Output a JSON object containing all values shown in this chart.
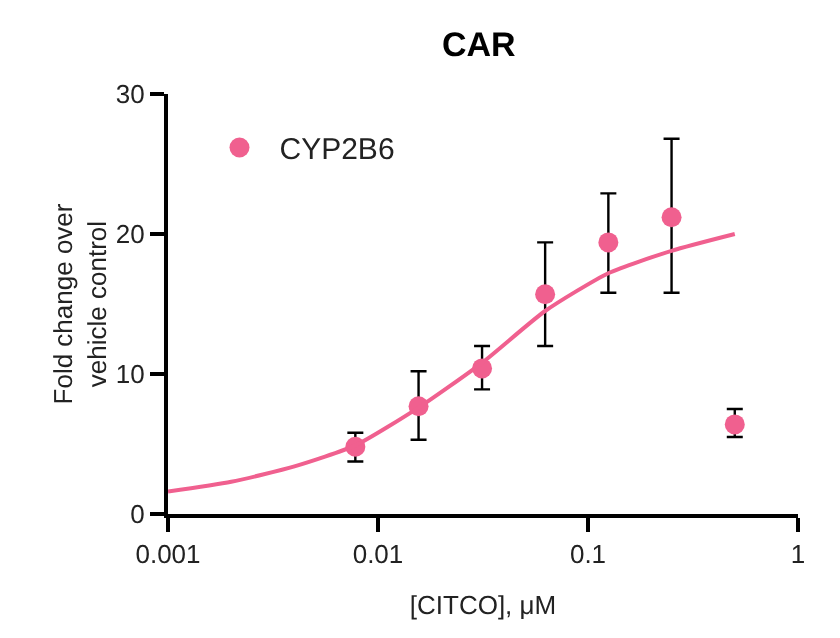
{
  "chart_data": {
    "type": "scatter",
    "title": "CAR",
    "xlabel": "[CITCO], μM",
    "ylabel": "Fold change over\nvehicle control",
    "log": "x",
    "xlim": [
      0.001,
      1
    ],
    "xticks": [
      0.001,
      0.01,
      0.1,
      1
    ],
    "ylim": [
      0,
      30
    ],
    "yticks": [
      0,
      10,
      20,
      30
    ],
    "grid": false,
    "legend": "top left",
    "marker": "circle",
    "series": [
      {
        "name": "CYP2B6",
        "color": "#f0608f",
        "x": [
          0.0078,
          0.0156,
          0.0313,
          0.0625,
          0.125,
          0.25,
          0.5
        ],
        "values": [
          4.8,
          7.7,
          10.4,
          15.7,
          19.4,
          21.2,
          6.4
        ],
        "errors": [
          [
            3.75,
            5.8
          ],
          [
            5.3,
            10.2
          ],
          [
            8.9,
            12.0
          ],
          [
            12.0,
            19.4
          ],
          [
            15.8,
            22.9
          ],
          [
            15.8,
            26.8
          ],
          [
            5.5,
            7.5
          ]
        ]
      },
      {
        "type": "line",
        "marker": "none",
        "color": "#f0608f",
        "line_style": "solid",
        "x": [
          0.001,
          0.002,
          0.004,
          0.0078,
          0.0156,
          0.0313,
          0.0625,
          0.125,
          0.25,
          0.5
        ],
        "values": [
          1.6,
          2.3,
          3.4,
          4.9,
          7.6,
          10.8,
          14.5,
          17.2,
          18.8,
          20.0
        ]
      }
    ]
  }
}
